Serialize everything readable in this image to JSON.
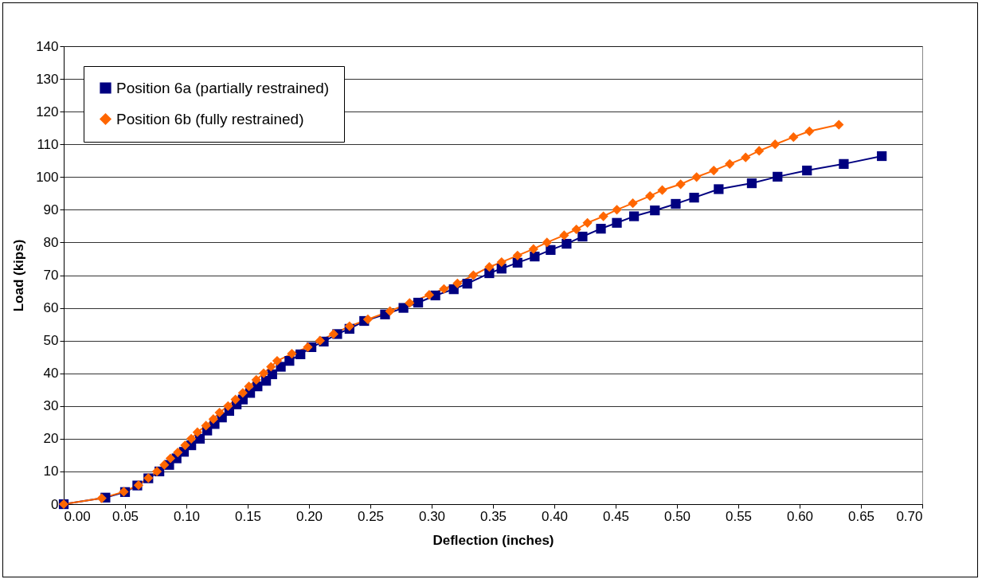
{
  "chart_data": {
    "type": "line",
    "xlabel": "Deflection (inches)",
    "ylabel": "Load (kips)",
    "xlim": [
      0,
      0.7
    ],
    "ylim": [
      0,
      140
    ],
    "xticks": [
      {
        "value": 0,
        "label": "0.00"
      },
      {
        "value": 0.05,
        "label": "0.05"
      },
      {
        "value": 0.1,
        "label": "0.10"
      },
      {
        "value": 0.15,
        "label": "0.15"
      },
      {
        "value": 0.2,
        "label": "0.20"
      },
      {
        "value": 0.25,
        "label": "0.25"
      },
      {
        "value": 0.3,
        "label": "0.30"
      },
      {
        "value": 0.35,
        "label": "0.35"
      },
      {
        "value": 0.4,
        "label": "0.40"
      },
      {
        "value": 0.45,
        "label": "0.45"
      },
      {
        "value": 0.5,
        "label": "0.50"
      },
      {
        "value": 0.55,
        "label": "0.55"
      },
      {
        "value": 0.6,
        "label": "0.60"
      },
      {
        "value": 0.65,
        "label": "0.65"
      },
      {
        "value": 0.7,
        "label": "0.70"
      }
    ],
    "yticks": [
      0,
      10,
      20,
      30,
      40,
      50,
      60,
      70,
      80,
      90,
      100,
      110,
      120,
      130,
      140
    ],
    "grid": "y",
    "legend": "top left",
    "line_style": "solid",
    "series": [
      {
        "name": "Position 6a (partially restrained)",
        "color": "#000080",
        "marker": "square",
        "x": [
          0,
          0.034,
          0.05,
          0.06,
          0.069,
          0.078,
          0.086,
          0.092,
          0.098,
          0.104,
          0.111,
          0.117,
          0.123,
          0.129,
          0.135,
          0.141,
          0.146,
          0.152,
          0.158,
          0.165,
          0.17,
          0.177,
          0.184,
          0.193,
          0.202,
          0.212,
          0.223,
          0.233,
          0.245,
          0.262,
          0.277,
          0.289,
          0.303,
          0.318,
          0.329,
          0.347,
          0.357,
          0.37,
          0.384,
          0.397,
          0.41,
          0.423,
          0.438,
          0.451,
          0.465,
          0.482,
          0.499,
          0.514,
          0.534,
          0.561,
          0.582,
          0.606,
          0.636,
          0.667
        ],
        "values": [
          0,
          2,
          3.7,
          5.7,
          7.9,
          10,
          12,
          14,
          16,
          18,
          20,
          22.5,
          24.5,
          26.5,
          28.5,
          30.5,
          32,
          34,
          36,
          37.7,
          39.7,
          42,
          43.8,
          45.8,
          48,
          49.7,
          52,
          53.6,
          56,
          58,
          60,
          61.6,
          63.8,
          65.7,
          67.4,
          70.6,
          72,
          73.8,
          75.7,
          77.7,
          79.6,
          81.8,
          84.2,
          86,
          88,
          89.8,
          91.8,
          93.7,
          96.3,
          98.1,
          100.1,
          102,
          104,
          106.4
        ]
      },
      {
        "name": "Position 6b (fully restrained)",
        "color": "#ff6600",
        "marker": "diamond",
        "x": [
          0,
          0.031,
          0.049,
          0.061,
          0.069,
          0.076,
          0.082,
          0.087,
          0.093,
          0.099,
          0.104,
          0.109,
          0.116,
          0.122,
          0.127,
          0.134,
          0.14,
          0.146,
          0.151,
          0.157,
          0.163,
          0.169,
          0.174,
          0.186,
          0.199,
          0.209,
          0.22,
          0.233,
          0.248,
          0.266,
          0.282,
          0.298,
          0.31,
          0.321,
          0.334,
          0.347,
          0.357,
          0.37,
          0.383,
          0.394,
          0.408,
          0.418,
          0.427,
          0.44,
          0.451,
          0.464,
          0.478,
          0.488,
          0.503,
          0.516,
          0.53,
          0.543,
          0.556,
          0.567,
          0.58,
          0.595,
          0.608,
          0.632
        ],
        "values": [
          0,
          1.8,
          3.8,
          5.8,
          8,
          10,
          12,
          14,
          15.8,
          18,
          20,
          22,
          24,
          26,
          28,
          30,
          32,
          34,
          36,
          38,
          40,
          42,
          43.8,
          46,
          48,
          50,
          52,
          54.4,
          56.5,
          59,
          61.5,
          64,
          65.8,
          67.5,
          70,
          72.5,
          74,
          76,
          78,
          80,
          82.2,
          84,
          86,
          88,
          90,
          92,
          94.2,
          96,
          97.8,
          100,
          102,
          104,
          106,
          108,
          110,
          112.2,
          114,
          116
        ]
      }
    ]
  }
}
